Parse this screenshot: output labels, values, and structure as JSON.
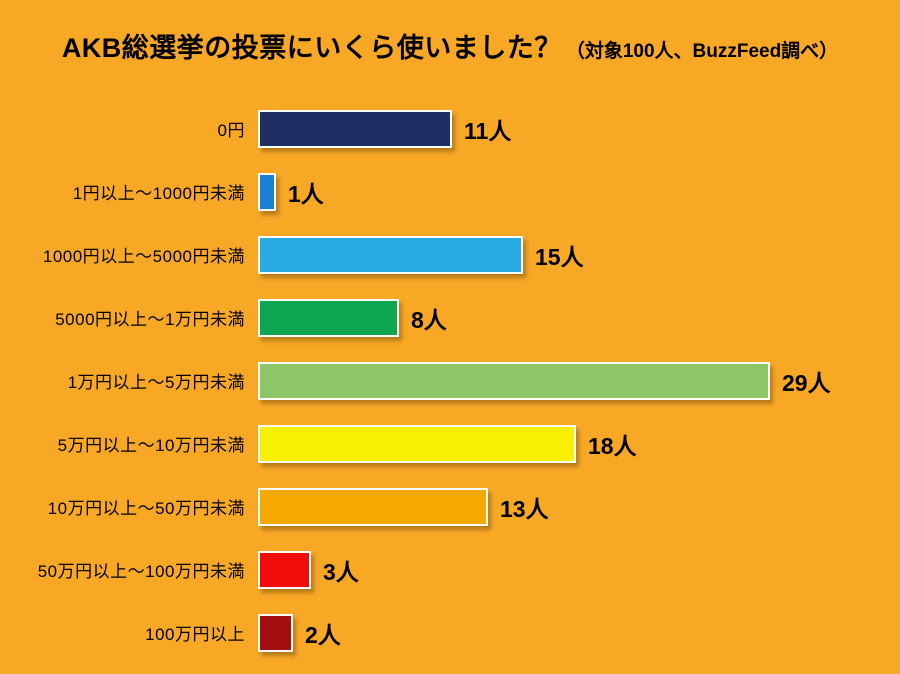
{
  "title": {
    "main": "AKB総選挙の投票にいくら使いました？",
    "note": "（対象100人、BuzzFeed調べ）"
  },
  "colors": {
    "background": "#F9A826",
    "bar_border": "#FFFFFF",
    "text": "#000000"
  },
  "chart_data": {
    "type": "bar",
    "orientation": "horizontal",
    "title": "AKB総選挙の投票にいくら使いました？（対象100人、BuzzFeed調べ）",
    "categories": [
      "0円",
      "1円以上～1000円未満",
      "1000円以上～5000円未満",
      "5000円以上～1万円未満",
      "1万円以上～5万円未満",
      "5万円以上～10万円未満",
      "10万円以上～50万円未満",
      "50万円以上～100万円未満",
      "100万円以上"
    ],
    "values": [
      11,
      1,
      15,
      8,
      29,
      18,
      13,
      3,
      2
    ],
    "value_labels": [
      "11人",
      "1人",
      "15人",
      "8人",
      "29人",
      "18人",
      "13人",
      "3人",
      "2人"
    ],
    "unit": "人",
    "bar_colors": [
      "#1E2F63",
      "#1A7FD5",
      "#29ABE2",
      "#0CA750",
      "#8DC667",
      "#F7F000",
      "#F5A800",
      "#F20D0D",
      "#A30F0F"
    ],
    "xlim": [
      0,
      29
    ],
    "total_respondents": 100,
    "legend": "none",
    "grid": false
  }
}
